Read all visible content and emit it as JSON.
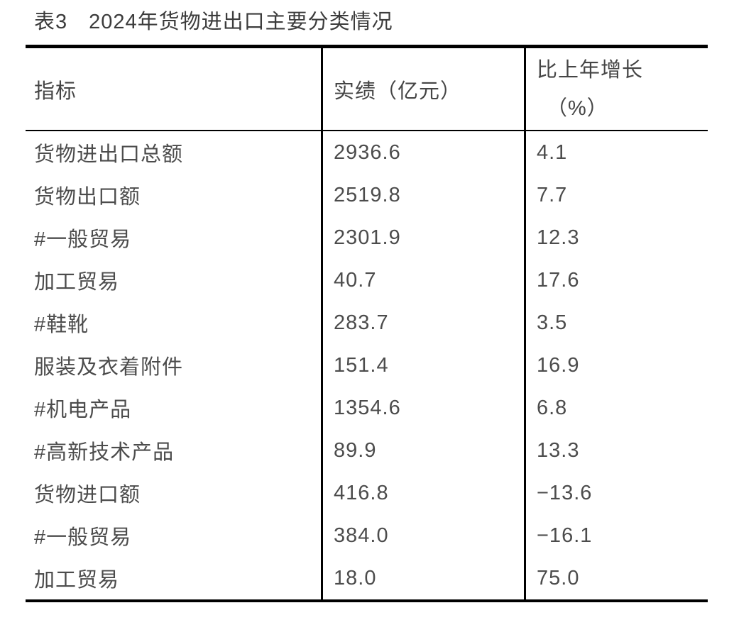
{
  "title": "表3　2024年货物进出口主要分类情况",
  "colors": {
    "border": "#000000",
    "title_text": "#3c3c3c",
    "header_text": "#454545",
    "body_text": "#4c4c4c",
    "background": "#ffffff"
  },
  "table": {
    "columns": [
      {
        "label": "指标"
      },
      {
        "label": "实绩（亿元）"
      },
      {
        "label_line1": "比上年增长",
        "label_line2": "（%）"
      }
    ],
    "rows": [
      {
        "indicator": "货物进出口总额",
        "value": "2936.6",
        "growth": "4.1"
      },
      {
        "indicator": "货物出口额",
        "value": "2519.8",
        "growth": "7.7"
      },
      {
        "indicator": "#一般贸易",
        "value": "2301.9",
        "growth": "12.3"
      },
      {
        "indicator": "加工贸易",
        "value": "40.7",
        "growth": "17.6"
      },
      {
        "indicator": "#鞋靴",
        "value": "283.7",
        "growth": "3.5"
      },
      {
        "indicator": "服装及衣着附件",
        "value": "151.4",
        "growth": "16.9"
      },
      {
        "indicator": "#机电产品",
        "value": "1354.6",
        "growth": "6.8"
      },
      {
        "indicator": "#高新技术产品",
        "value": "89.9",
        "growth": "13.3"
      },
      {
        "indicator": "货物进口额",
        "value": "416.8",
        "growth": "−13.6"
      },
      {
        "indicator": "#一般贸易",
        "value": "384.0",
        "growth": "−16.1"
      },
      {
        "indicator": "加工贸易",
        "value": "18.0",
        "growth": "75.0"
      }
    ]
  }
}
